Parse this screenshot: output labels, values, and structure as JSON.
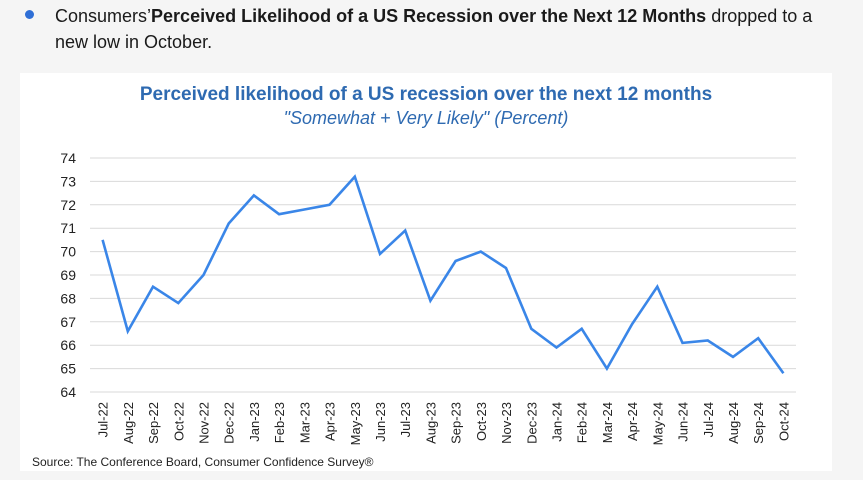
{
  "bullet": {
    "prefix": "Consumers’",
    "bold": "Perceived Likelihood of a US Recession over the Next 12 Months",
    "suffix": " dropped to a new low in October."
  },
  "colors": {
    "line": "#3a86e8",
    "title": "#2e6ab1",
    "bullet": "#2f6fd6"
  },
  "source": "Source: The Conference Board, Consumer Confidence   Survey®",
  "chart_data": {
    "type": "line",
    "title": "Perceived likelihood of a US recession over the next 12 months",
    "subtitle": "\"Somewhat + Very Likely\" (Percent)",
    "xlabel": "",
    "ylabel": "",
    "ylim": [
      64,
      74
    ],
    "yticks": [
      64,
      65,
      66,
      67,
      68,
      69,
      70,
      71,
      72,
      73,
      74
    ],
    "grid": true,
    "categories": [
      "Jul-22",
      "Aug-22",
      "Sep-22",
      "Oct-22",
      "Nov-22",
      "Dec-22",
      "Jan-23",
      "Feb-23",
      "Mar-23",
      "Apr-23",
      "May-23",
      "Jun-23",
      "Jul-23",
      "Aug-23",
      "Sep-23",
      "Oct-23",
      "Nov-23",
      "Dec-23",
      "Jan-24",
      "Feb-24",
      "Mar-24",
      "Apr-24",
      "May-24",
      "Jun-24",
      "Jul-24",
      "Aug-24",
      "Sep-24",
      "Oct-24"
    ],
    "series": [
      {
        "values": [
          70.5,
          66.6,
          68.5,
          67.8,
          69.0,
          71.2,
          72.4,
          71.6,
          71.8,
          72.0,
          73.2,
          69.9,
          70.9,
          67.9,
          69.6,
          70.0,
          69.3,
          66.7,
          65.9,
          66.7,
          65.0,
          66.9,
          68.5,
          66.1,
          66.2,
          65.5,
          66.3,
          64.8
        ]
      }
    ]
  }
}
